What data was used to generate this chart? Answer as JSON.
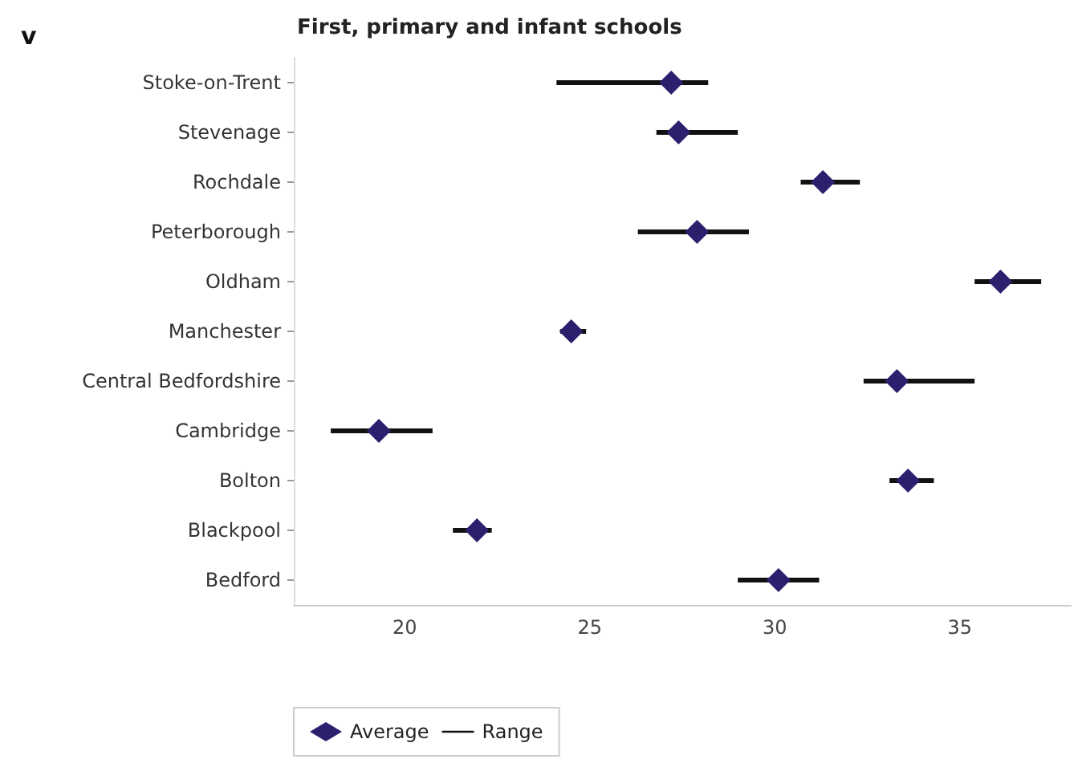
{
  "chart_data": {
    "type": "bar",
    "orientation": "horizontal",
    "title": "First, primary and infant schools",
    "annotations": [
      "v"
    ],
    "categories": [
      "Stoke-on-Trent",
      "Stevenage",
      "Rochdale",
      "Peterborough",
      "Oldham",
      "Manchester",
      "Central Bedfordshire",
      "Cambridge",
      "Bolton",
      "Blackpool",
      "Bedford"
    ],
    "series": [
      {
        "name": "Average",
        "type": "scatter",
        "marker": "diamond",
        "color": "#2e1f6e",
        "values": [
          27.2,
          27.4,
          31.3,
          27.9,
          36.1,
          24.5,
          33.3,
          19.3,
          33.6,
          21.95,
          30.1
        ]
      },
      {
        "name": "Range",
        "color": "#111111",
        "base": [
          24.1,
          26.8,
          30.7,
          26.3,
          35.4,
          24.2,
          32.4,
          18.0,
          33.1,
          21.3,
          29.0
        ],
        "values": [
          4.1,
          2.2,
          1.6,
          3.0,
          1.8,
          0.7,
          3.0,
          2.75,
          1.2,
          1.05,
          2.2
        ]
      }
    ],
    "xlim": [
      17,
      38
    ],
    "xticks": [
      20,
      25,
      30,
      35
    ],
    "grid": false,
    "legend": "bottom left"
  }
}
